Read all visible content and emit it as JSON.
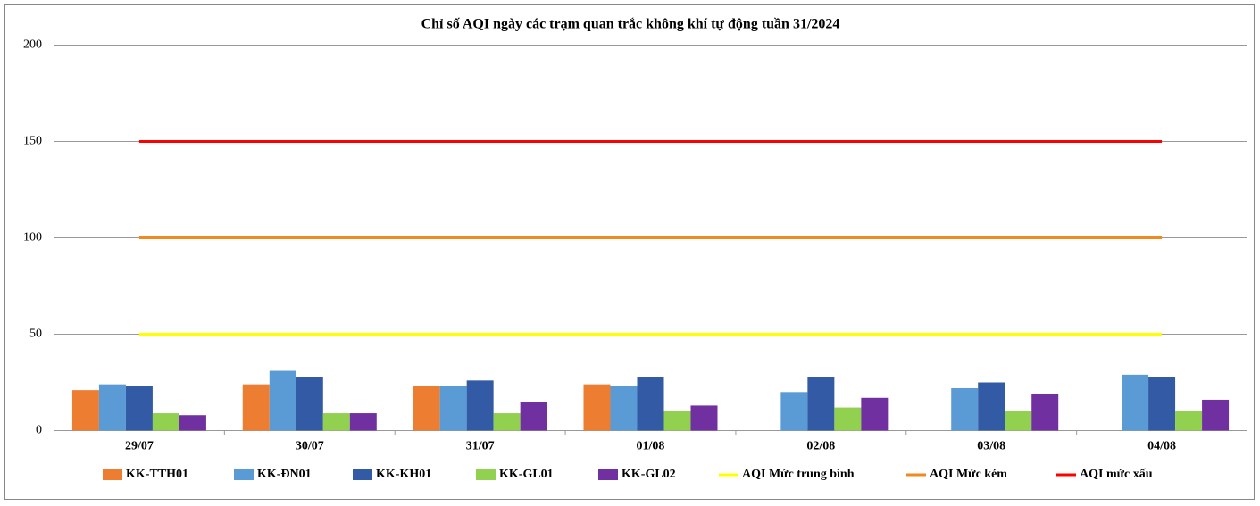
{
  "chart_data": {
    "type": "bar",
    "title": "Chỉ số AQI ngày các trạm quan trắc không khí tự động tuần 31/2024",
    "categories": [
      "29/07",
      "30/07",
      "31/07",
      "01/08",
      "02/08",
      "03/08",
      "04/08"
    ],
    "series": [
      {
        "name": "KK-TTH01",
        "color": "#ED7D31",
        "values": [
          21,
          24,
          23,
          24,
          null,
          null,
          null
        ]
      },
      {
        "name": "KK-ĐN01",
        "color": "#5B9BD5",
        "values": [
          24,
          31,
          23,
          23,
          20,
          22,
          29
        ]
      },
      {
        "name": "KK-KH01",
        "color": "#335AA4",
        "values": [
          23,
          28,
          26,
          28,
          28,
          25,
          28
        ]
      },
      {
        "name": "KK-GL01",
        "color": "#92D050",
        "values": [
          9,
          9,
          9,
          10,
          12,
          10,
          10
        ]
      },
      {
        "name": "KK-GL02",
        "color": "#7030A0",
        "values": [
          8,
          9,
          15,
          13,
          17,
          19,
          16
        ]
      },
      {
        "name": "AQI Mức trung bình",
        "color": "#FFFF00",
        "type": "line",
        "values": [
          50,
          50,
          50,
          50,
          50,
          50,
          50
        ]
      },
      {
        "name": "AQI Mức kém",
        "color": "#F08A1E",
        "type": "line",
        "values": [
          100,
          100,
          100,
          100,
          100,
          100,
          100
        ]
      },
      {
        "name": "AQI mức xấu",
        "color": "#FF0000",
        "type": "line",
        "values": [
          150,
          150,
          150,
          150,
          150,
          150,
          150
        ]
      }
    ],
    "ylim": [
      0,
      200
    ],
    "yticks": [
      0,
      50,
      100,
      150,
      200
    ],
    "grid": true
  }
}
